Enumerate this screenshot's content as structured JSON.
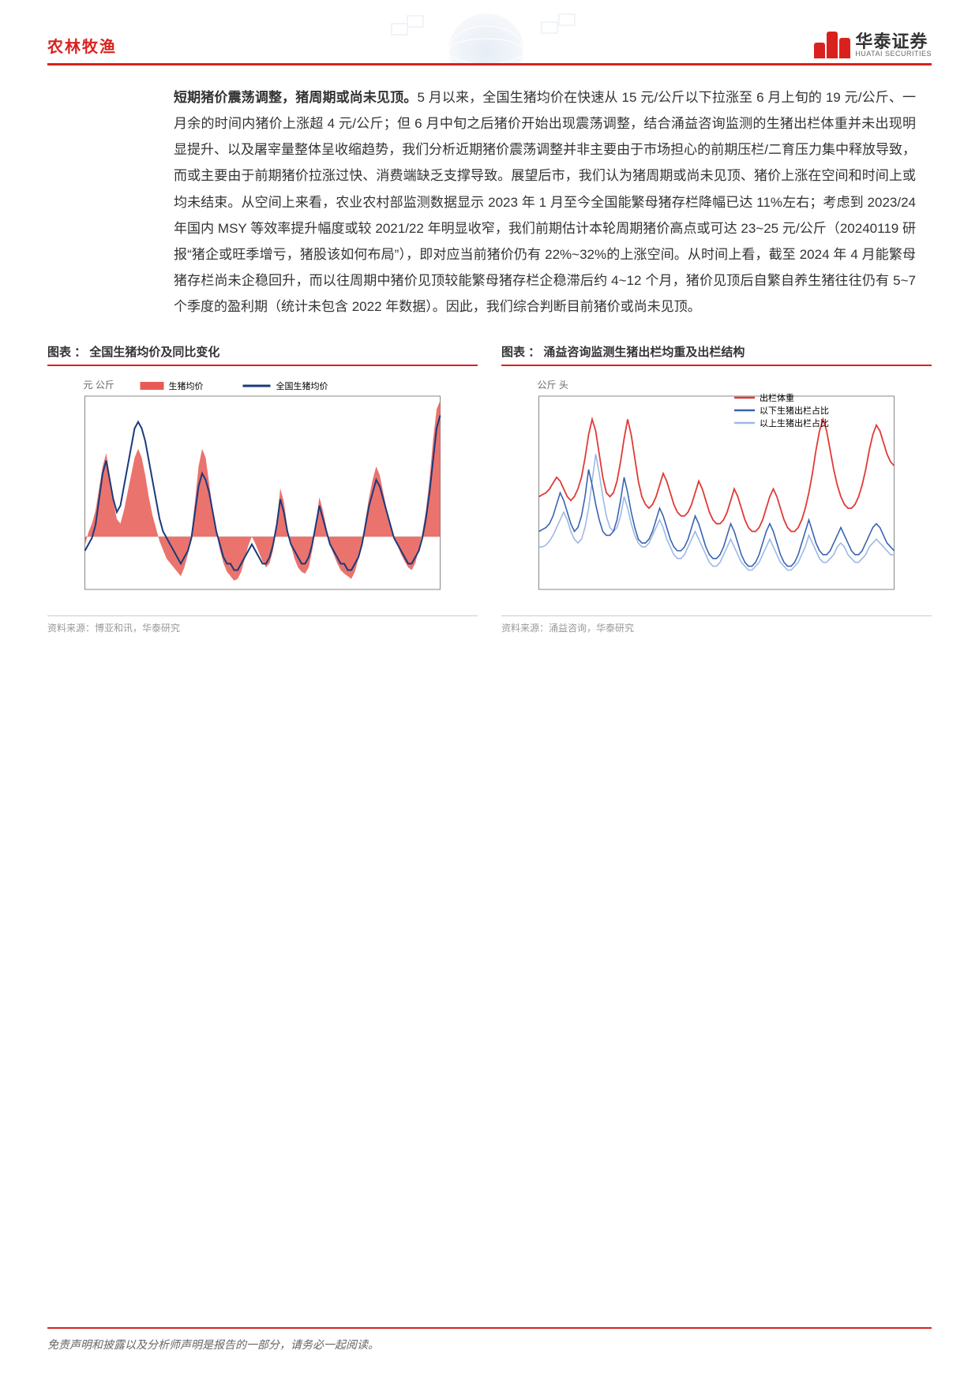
{
  "header": {
    "section": "农林牧渔",
    "brand_cn": "华泰证券",
    "brand_en": "HUATAI SECURITIES",
    "accent_color": "#d9221e"
  },
  "paragraph": {
    "lead_bold": "短期猪价震荡调整，猪周期或尚未见顶。",
    "rest": "5 月以来，全国生猪均价在快速从 15 元/公斤以下拉涨至 6 月上旬的 19 元/公斤、一月余的时间内猪价上涨超 4 元/公斤；但 6 月中旬之后猪价开始出现震荡调整，结合涌益咨询监测的生猪出栏体重并未出现明显提升、以及屠宰量整体呈收缩趋势，我们分析近期猪价震荡调整并非主要由于市场担心的前期压栏/二育压力集中释放导致，而或主要由于前期猪价拉涨过快、消费端缺乏支撑导致。展望后市，我们认为猪周期或尚未见顶、猪价上涨在空间和时间上或均未结束。从空间上来看，农业农村部监测数据显示 2023 年 1 月至今全国能繁母猪存栏降幅已达 11%左右；考虑到 2023/24 年国内 MSY 等效率提升幅度或较 2021/22 年明显收窄，我们前期估计本轮周期猪价高点或可达 23~25 元/公斤（20240119 研报“猪企或旺季增亏，猪股该如何布局”），即对应当前猪价仍有 22%~32%的上涨空间。从时间上看，截至 2024 年 4 月能繁母猪存栏尚未企稳回升，而以往周期中猪价见顶较能繁母猪存栏企稳滞后约 4~12 个月，猪价见顶后自繁自养生猪往往仍有 5~7 个季度的盈利期（统计未包含 2022 年数据）。因此，我们综合判断目前猪价或尚未见顶。"
  },
  "chart_left": {
    "title": "图表 ： 全国生猪均价及同比变化",
    "y_left_label": "元 公斤",
    "legend_area": "生猪均价",
    "legend_line": "全国生猪均价",
    "source": "资料来源：博亚和讯，华泰研究",
    "colors": {
      "area": "#e85a54",
      "line": "#1a3a7a",
      "grid": "#dddddd",
      "axis": "#888888"
    },
    "xlim": [
      0,
      100
    ],
    "left_ylim": [
      10,
      40
    ],
    "right_ylim": [
      -60,
      160
    ],
    "line_series": [
      16,
      17,
      18,
      20,
      24,
      28,
      30,
      27,
      24,
      22,
      23,
      26,
      29,
      32,
      35,
      36,
      35,
      33,
      30,
      27,
      24,
      21,
      19,
      18,
      17,
      16,
      15,
      14,
      15,
      16,
      18,
      22,
      26,
      28,
      27,
      25,
      22,
      19,
      17,
      15,
      14,
      14,
      13,
      13,
      14,
      15,
      16,
      17,
      16,
      15,
      14,
      14,
      15,
      17,
      20,
      24,
      22,
      19,
      17,
      16,
      15,
      14,
      14,
      15,
      17,
      20,
      23,
      21,
      19,
      17,
      16,
      15,
      14,
      14,
      13,
      13,
      14,
      15,
      17,
      20,
      23,
      25,
      27,
      26,
      24,
      22,
      20,
      18,
      17,
      16,
      15,
      14,
      14,
      15,
      16,
      18,
      21,
      25,
      30,
      35,
      37
    ],
    "area_series": [
      -10,
      5,
      15,
      30,
      55,
      80,
      95,
      70,
      40,
      20,
      15,
      30,
      50,
      70,
      90,
      100,
      90,
      70,
      45,
      25,
      10,
      -5,
      -15,
      -25,
      -30,
      -35,
      -40,
      -45,
      -35,
      -20,
      5,
      40,
      80,
      100,
      90,
      60,
      30,
      5,
      -15,
      -30,
      -40,
      -45,
      -50,
      -48,
      -40,
      -25,
      -10,
      0,
      -8,
      -18,
      -28,
      -35,
      -30,
      -15,
      15,
      55,
      40,
      10,
      -10,
      -25,
      -35,
      -40,
      -42,
      -35,
      -15,
      15,
      45,
      30,
      10,
      -10,
      -20,
      -30,
      -38,
      -42,
      -45,
      -48,
      -40,
      -25,
      -5,
      20,
      45,
      65,
      80,
      70,
      50,
      30,
      15,
      0,
      -10,
      -20,
      -28,
      -35,
      -38,
      -30,
      -15,
      5,
      30,
      65,
      110,
      145,
      155
    ]
  },
  "chart_right": {
    "title": "图表 ： 涌益咨询监测生猪出栏均重及出栏结构",
    "y_left_label": "公斤 头",
    "legend_red": "出栏体重",
    "legend_blue1": "以下生猪出栏占比",
    "legend_blue2": "以上生猪出栏占比",
    "source": "资料来源：涌益咨询，华泰研究",
    "colors": {
      "line_red": "#e03a36",
      "line_blue_dark": "#3a63b0",
      "line_blue_light": "#9db9e4",
      "grid": "#dddddd",
      "axis": "#888888"
    },
    "xlim": [
      0,
      100
    ],
    "ylim": [
      0,
      100
    ],
    "red_series": [
      48,
      49,
      50,
      52,
      55,
      58,
      56,
      52,
      48,
      46,
      48,
      52,
      58,
      68,
      80,
      88,
      82,
      70,
      58,
      50,
      48,
      50,
      56,
      66,
      78,
      88,
      80,
      68,
      56,
      48,
      44,
      42,
      44,
      48,
      54,
      60,
      56,
      50,
      44,
      40,
      38,
      38,
      40,
      44,
      50,
      56,
      52,
      46,
      40,
      36,
      34,
      34,
      36,
      40,
      46,
      52,
      48,
      42,
      36,
      32,
      30,
      30,
      32,
      36,
      42,
      48,
      52,
      48,
      42,
      36,
      32,
      30,
      30,
      32,
      36,
      42,
      50,
      60,
      72,
      82,
      88,
      82,
      72,
      62,
      54,
      48,
      44,
      42,
      42,
      44,
      48,
      54,
      62,
      72,
      80,
      85,
      82,
      76,
      70,
      66,
      64
    ],
    "dark_series": [
      30,
      31,
      32,
      34,
      38,
      44,
      50,
      46,
      40,
      34,
      30,
      32,
      38,
      48,
      62,
      54,
      44,
      36,
      30,
      28,
      28,
      30,
      36,
      46,
      58,
      50,
      40,
      32,
      26,
      24,
      24,
      26,
      30,
      36,
      42,
      38,
      32,
      26,
      22,
      20,
      20,
      22,
      26,
      32,
      38,
      34,
      28,
      22,
      18,
      16,
      16,
      18,
      22,
      28,
      34,
      30,
      24,
      18,
      14,
      12,
      12,
      14,
      18,
      24,
      30,
      34,
      30,
      24,
      18,
      14,
      12,
      12,
      14,
      18,
      24,
      30,
      36,
      30,
      24,
      20,
      18,
      18,
      20,
      24,
      28,
      32,
      28,
      24,
      20,
      18,
      18,
      20,
      24,
      28,
      32,
      34,
      32,
      28,
      24,
      22,
      20
    ],
    "light_series": [
      22,
      22,
      23,
      25,
      28,
      32,
      36,
      40,
      36,
      30,
      26,
      24,
      26,
      32,
      42,
      56,
      70,
      60,
      48,
      38,
      32,
      30,
      32,
      38,
      48,
      42,
      34,
      28,
      24,
      22,
      22,
      24,
      28,
      32,
      36,
      32,
      26,
      22,
      18,
      16,
      16,
      18,
      22,
      26,
      30,
      26,
      22,
      18,
      14,
      12,
      12,
      14,
      18,
      22,
      26,
      22,
      18,
      14,
      12,
      10,
      10,
      12,
      14,
      18,
      22,
      26,
      22,
      18,
      14,
      12,
      10,
      10,
      12,
      14,
      18,
      22,
      28,
      24,
      20,
      16,
      14,
      14,
      16,
      18,
      22,
      24,
      22,
      18,
      16,
      14,
      14,
      16,
      18,
      22,
      24,
      26,
      24,
      22,
      20,
      18,
      18
    ]
  },
  "footer": {
    "disclaimer": "免责声明和披露以及分析师声明是报告的一部分，请务必一起阅读。",
    "page": ""
  }
}
